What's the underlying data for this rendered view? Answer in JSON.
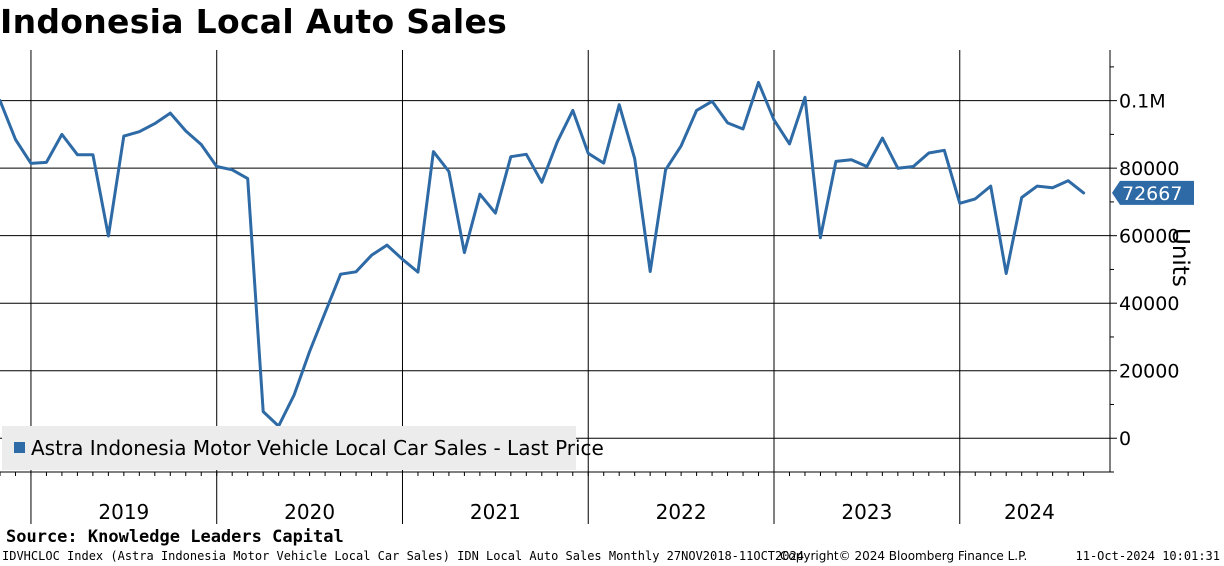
{
  "title": "Indonesia Local Auto Sales",
  "source": "Source: Knowledge Leaders Capital",
  "footer": {
    "ticker": "IDVHCLOC Index (Astra Indonesia Motor Vehicle Local Car Sales) IDN Local Auto Sales  Monthly 27NOV2018-11OCT2024",
    "copyright": "Copyright© 2024 Bloomberg Finance L.P.",
    "timestamp": "11-Oct-2024 10:01:31"
  },
  "colors": {
    "series": "#2e6aa5",
    "legend_bg": "#ececec",
    "grid": "#000000"
  },
  "chart_data": {
    "type": "line",
    "ylabel": "Units",
    "ylim": [
      -10000,
      115000
    ],
    "yticks": [
      0,
      20000,
      40000,
      60000,
      80000,
      100000
    ],
    "ytick_labels": [
      "0",
      "20000",
      "40000",
      "60000",
      "80000",
      "0.1M"
    ],
    "year_labels": [
      "2019",
      "2020",
      "2021",
      "2022",
      "2023",
      "2024"
    ],
    "grid": true,
    "legend": "bottom-left",
    "last_value_label": "72667",
    "series": [
      {
        "name": "Astra Indonesia Motor Vehicle Local Car Sales - Last Price",
        "start": "2018-11",
        "frequency": "monthly",
        "values": [
          100000,
          88500,
          81400,
          81700,
          90000,
          84000,
          84000,
          59900,
          89500,
          90800,
          93200,
          96300,
          91000,
          87000,
          80500,
          79500,
          76900,
          7900,
          3600,
          12800,
          25700,
          37200,
          48600,
          49300,
          54200,
          57200,
          53000,
          49200,
          84900,
          79000,
          55000,
          72300,
          66700,
          83400,
          84100,
          75800,
          87800,
          97100,
          84400,
          81500,
          98800,
          82800,
          49400,
          79500,
          86600,
          97100,
          99800,
          93400,
          91600,
          105400,
          94300,
          87200,
          101000,
          59400,
          82000,
          82500,
          80500,
          88900,
          80000,
          80500,
          84500,
          85300,
          69600,
          70900,
          74700,
          48800,
          71300,
          74700,
          74200,
          76300,
          72667
        ]
      }
    ]
  }
}
